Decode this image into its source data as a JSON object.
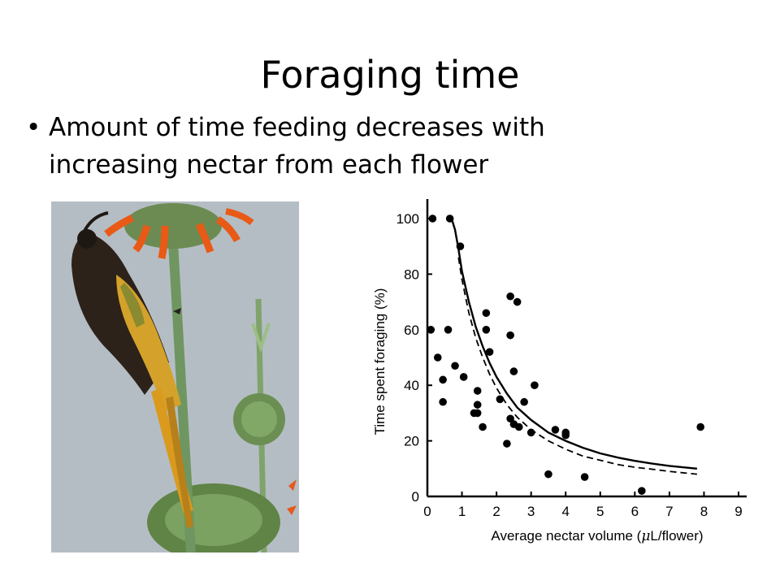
{
  "slide": {
    "title": "Foraging time",
    "bullet_symbol": "•",
    "bullet_text": "Amount of time feeding decreases with increasing nectar from each flower"
  },
  "photo": {
    "subject_icon": "sunbird-feeding-on-flower-photo"
  },
  "chart_data": {
    "type": "scatter",
    "title": "",
    "xlabel_prefix": "Average nectar volume (",
    "xlabel_mu": "μ",
    "xlabel_suffix": "L/flower)",
    "ylabel": "Time spent foraging (%)",
    "xlim": [
      0,
      9
    ],
    "ylim": [
      0,
      100
    ],
    "x_ticks": [
      "0",
      "1",
      "2",
      "3",
      "4",
      "5",
      "6",
      "7",
      "8",
      "9"
    ],
    "y_ticks": [
      "0",
      "20",
      "40",
      "60",
      "80",
      "100"
    ],
    "grid": false,
    "points": [
      {
        "x": 0.15,
        "y": 100
      },
      {
        "x": 0.65,
        "y": 100
      },
      {
        "x": 0.95,
        "y": 90
      },
      {
        "x": 0.1,
        "y": 60
      },
      {
        "x": 0.6,
        "y": 60
      },
      {
        "x": 0.3,
        "y": 50
      },
      {
        "x": 0.45,
        "y": 42
      },
      {
        "x": 0.45,
        "y": 34
      },
      {
        "x": 0.8,
        "y": 47
      },
      {
        "x": 1.05,
        "y": 43
      },
      {
        "x": 1.45,
        "y": 38
      },
      {
        "x": 1.35,
        "y": 30
      },
      {
        "x": 1.45,
        "y": 30
      },
      {
        "x": 1.45,
        "y": 33
      },
      {
        "x": 1.6,
        "y": 25
      },
      {
        "x": 1.7,
        "y": 66
      },
      {
        "x": 1.7,
        "y": 60
      },
      {
        "x": 1.8,
        "y": 52
      },
      {
        "x": 2.1,
        "y": 35
      },
      {
        "x": 2.3,
        "y": 19
      },
      {
        "x": 2.4,
        "y": 72
      },
      {
        "x": 2.4,
        "y": 58
      },
      {
        "x": 2.5,
        "y": 45
      },
      {
        "x": 2.4,
        "y": 28
      },
      {
        "x": 2.5,
        "y": 26
      },
      {
        "x": 2.65,
        "y": 25
      },
      {
        "x": 2.6,
        "y": 70
      },
      {
        "x": 2.8,
        "y": 34
      },
      {
        "x": 3.0,
        "y": 23
      },
      {
        "x": 3.1,
        "y": 40
      },
      {
        "x": 3.5,
        "y": 8
      },
      {
        "x": 3.7,
        "y": 24
      },
      {
        "x": 4.0,
        "y": 23
      },
      {
        "x": 4.0,
        "y": 22
      },
      {
        "x": 4.55,
        "y": 7
      },
      {
        "x": 6.2,
        "y": 2
      },
      {
        "x": 7.9,
        "y": 25
      }
    ],
    "solid_curve": [
      [
        0.7,
        100
      ],
      [
        0.8,
        96
      ],
      [
        0.9,
        89
      ],
      [
        1.0,
        81
      ],
      [
        1.2,
        70
      ],
      [
        1.4,
        61
      ],
      [
        1.6,
        54
      ],
      [
        1.8,
        48
      ],
      [
        2.0,
        43
      ],
      [
        2.3,
        37
      ],
      [
        2.6,
        32
      ],
      [
        3.0,
        27.5
      ],
      [
        3.5,
        23
      ],
      [
        4.0,
        20
      ],
      [
        4.5,
        17.5
      ],
      [
        5.0,
        15.5
      ],
      [
        5.5,
        14
      ],
      [
        6.0,
        12.8
      ],
      [
        6.5,
        11.8
      ],
      [
        7.0,
        11
      ],
      [
        7.8,
        10
      ]
    ],
    "dashed_curve": [
      [
        0.9,
        86
      ],
      [
        1.0,
        78
      ],
      [
        1.2,
        66
      ],
      [
        1.4,
        57
      ],
      [
        1.6,
        50
      ],
      [
        1.8,
        44
      ],
      [
        2.0,
        39
      ],
      [
        2.3,
        33
      ],
      [
        2.6,
        28.5
      ],
      [
        3.0,
        24
      ],
      [
        3.5,
        20
      ],
      [
        4.0,
        17
      ],
      [
        4.5,
        14.5
      ],
      [
        5.0,
        13
      ],
      [
        5.5,
        11.5
      ],
      [
        6.0,
        10.5
      ],
      [
        6.5,
        9.8
      ],
      [
        7.0,
        9
      ],
      [
        7.8,
        8
      ]
    ]
  }
}
